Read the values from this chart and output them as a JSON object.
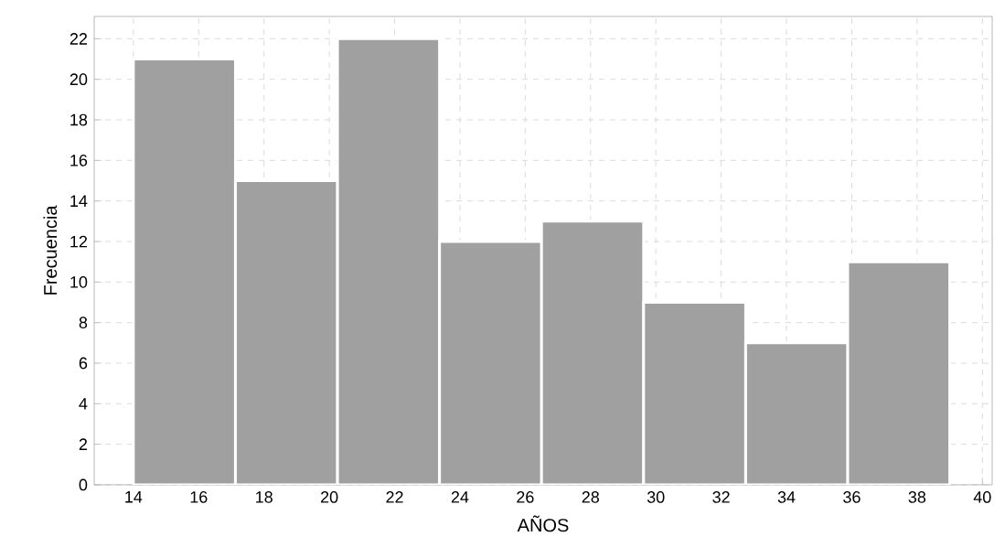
{
  "chart_data": {
    "type": "histogram",
    "xlabel": "AÑOS",
    "ylabel": "Frecuencia",
    "bins": [
      14,
      17.125,
      20.25,
      23.375,
      26.5,
      29.625,
      32.75,
      35.875,
      39
    ],
    "values": [
      21,
      15,
      22,
      12,
      13,
      9,
      7,
      11
    ],
    "color": "#a0a0a0",
    "xlim": [
      12.8,
      40.3
    ],
    "ylim": [
      0,
      23.1
    ],
    "xticks": [
      14,
      16,
      18,
      20,
      22,
      24,
      26,
      28,
      30,
      32,
      34,
      36,
      38,
      40
    ],
    "yticks": [
      0,
      2,
      4,
      6,
      8,
      10,
      12,
      14,
      16,
      18,
      20,
      22
    ],
    "grid": true
  }
}
